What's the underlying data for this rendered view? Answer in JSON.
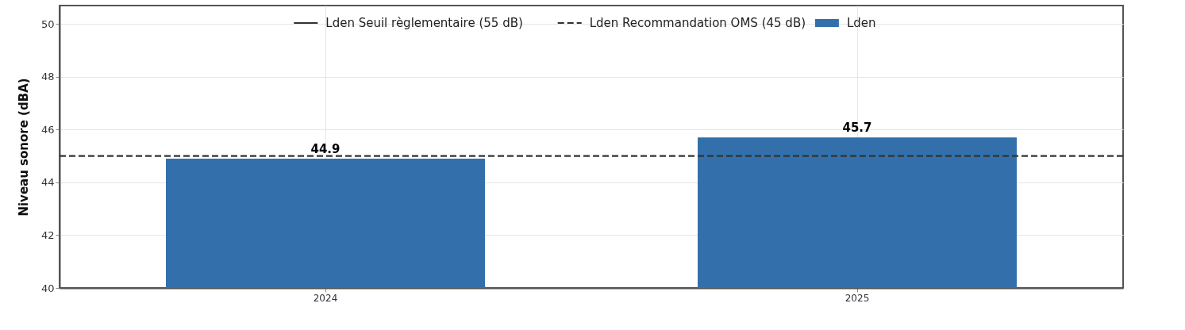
{
  "chart_data": {
    "type": "bar",
    "ylabel": "Niveau sonore (dBA)",
    "categories": [
      "2024",
      "2025"
    ],
    "series": [
      {
        "name": "Lden",
        "color": "#3370ab",
        "values": [
          44.9,
          45.7
        ]
      }
    ],
    "ylim": [
      40,
      50.7
    ],
    "yticks": [
      40,
      42,
      44,
      46,
      48,
      50
    ],
    "grid": true,
    "legend": "top",
    "data_labels": true,
    "annotations": [
      "Lden Seuil règlementaire (55 dB)"
    ],
    "ref_lines": [
      {
        "axis": "y",
        "value": 45,
        "label": "Lden Recommandation OMS (45 dB)",
        "color": "#333333",
        "line_style": "dashed"
      }
    ]
  }
}
